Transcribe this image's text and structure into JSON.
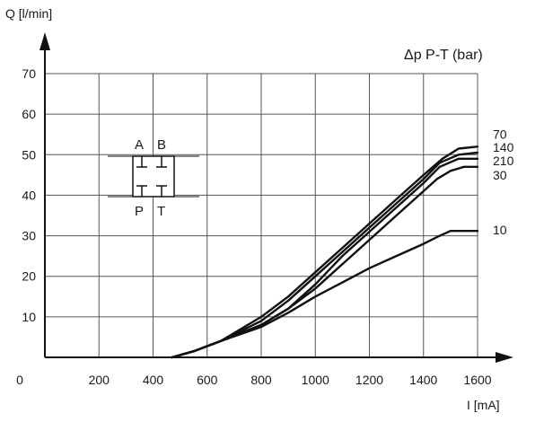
{
  "chart_data": {
    "type": "line",
    "ylabel": "Q [l/min]",
    "xlabel": "I [mA]",
    "legend_title": "Δp P-T (bar)",
    "xlim": [
      0,
      1600
    ],
    "ylim": [
      0,
      70
    ],
    "x_ticks": [
      0,
      200,
      400,
      600,
      800,
      1000,
      1200,
      1400,
      1600
    ],
    "x_tick_labels": [
      "0",
      "200",
      "400",
      "600",
      "800",
      "1000",
      "1200",
      "1400",
      "1600"
    ],
    "y_ticks": [
      10,
      20,
      30,
      40,
      50,
      60,
      70
    ],
    "y_tick_labels": [
      "10",
      "20",
      "30",
      "40",
      "50",
      "60",
      "70"
    ],
    "grid": true,
    "series": [
      {
        "name": "70",
        "points": [
          [
            470,
            0
          ],
          [
            550,
            1.5
          ],
          [
            650,
            4
          ],
          [
            800,
            10
          ],
          [
            900,
            15
          ],
          [
            1000,
            21
          ],
          [
            1100,
            27
          ],
          [
            1200,
            33
          ],
          [
            1300,
            39
          ],
          [
            1400,
            45
          ],
          [
            1470,
            49
          ],
          [
            1530,
            51.5
          ],
          [
            1600,
            52
          ]
        ]
      },
      {
        "name": "140",
        "points": [
          [
            470,
            0
          ],
          [
            550,
            1.5
          ],
          [
            650,
            4
          ],
          [
            800,
            9
          ],
          [
            900,
            14
          ],
          [
            1000,
            20
          ],
          [
            1100,
            26
          ],
          [
            1200,
            32
          ],
          [
            1300,
            38
          ],
          [
            1400,
            44
          ],
          [
            1460,
            48
          ],
          [
            1530,
            50
          ],
          [
            1600,
            50.5
          ]
        ]
      },
      {
        "name": "210",
        "points": [
          [
            470,
            0
          ],
          [
            550,
            1.5
          ],
          [
            650,
            4
          ],
          [
            800,
            8
          ],
          [
            900,
            12
          ],
          [
            1000,
            18
          ],
          [
            1100,
            25
          ],
          [
            1200,
            31
          ],
          [
            1300,
            37
          ],
          [
            1400,
            43
          ],
          [
            1460,
            47
          ],
          [
            1530,
            49
          ],
          [
            1600,
            49
          ]
        ]
      },
      {
        "name": "30",
        "points": [
          [
            470,
            0
          ],
          [
            550,
            1.5
          ],
          [
            650,
            4
          ],
          [
            800,
            8
          ],
          [
            900,
            12
          ],
          [
            1000,
            17
          ],
          [
            1100,
            23
          ],
          [
            1200,
            29
          ],
          [
            1300,
            35
          ],
          [
            1400,
            41
          ],
          [
            1450,
            44
          ],
          [
            1500,
            46
          ],
          [
            1550,
            47
          ],
          [
            1600,
            47
          ]
        ]
      },
      {
        "name": "10",
        "points": [
          [
            470,
            0
          ],
          [
            550,
            1.5
          ],
          [
            650,
            4
          ],
          [
            800,
            7.5
          ],
          [
            900,
            11
          ],
          [
            1000,
            15
          ],
          [
            1100,
            18.5
          ],
          [
            1200,
            22
          ],
          [
            1300,
            25
          ],
          [
            1400,
            28
          ],
          [
            1460,
            30
          ],
          [
            1500,
            31.2
          ],
          [
            1600,
            31.2
          ]
        ]
      }
    ],
    "series_labels": [
      {
        "text": "70",
        "y": 55
      },
      {
        "text": "140",
        "y": 51.8
      },
      {
        "text": "210",
        "y": 48.5
      },
      {
        "text": "30",
        "y": 45
      },
      {
        "text": "10",
        "y": 31.5
      }
    ],
    "inset_symbol": {
      "ports_top": [
        "A",
        "B"
      ],
      "ports_bottom": [
        "P",
        "T"
      ]
    }
  }
}
